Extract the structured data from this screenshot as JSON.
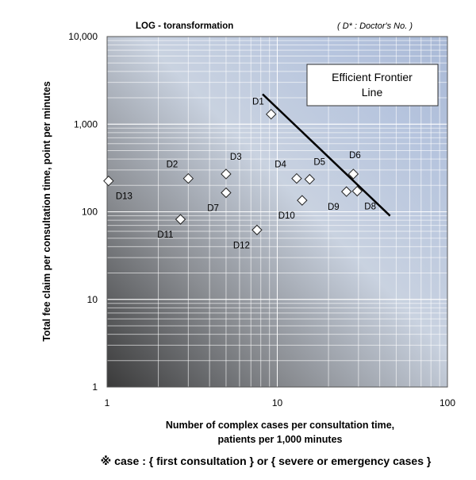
{
  "chart_data": {
    "type": "scatter",
    "scale": "log-log",
    "title": "LOG - toransformation",
    "note": "( D* : Doctor's No. )",
    "xlabel_line1": "Number of complex cases per consultation time,",
    "xlabel_line2": "patients per 1,000 minutes",
    "ylabel": "Total fee claim per consultation time, point per minutes",
    "footnote": "※ case : { first consultation } or { severe or emergency cases }",
    "xlim": [
      1,
      100
    ],
    "ylim": [
      1,
      10000
    ],
    "x_ticks": [
      {
        "value": 1,
        "label": "1"
      },
      {
        "value": 10,
        "label": "10"
      },
      {
        "value": 100,
        "label": "100"
      }
    ],
    "y_ticks": [
      {
        "value": 1,
        "label": "1"
      },
      {
        "value": 10,
        "label": "10"
      },
      {
        "value": 100,
        "label": "100"
      },
      {
        "value": 1000,
        "label": "1,000"
      },
      {
        "value": 10000,
        "label": "10,000"
      }
    ],
    "grid": true,
    "points": [
      {
        "label": "D1",
        "x": 9.2,
        "y": 1300,
        "label_pos": "left"
      },
      {
        "label": "D2",
        "x": 3.0,
        "y": 240,
        "label_pos": "upper-left"
      },
      {
        "label": "D3",
        "x": 5.0,
        "y": 270,
        "label_pos": "upper-right"
      },
      {
        "label": "D4",
        "x": 13.0,
        "y": 240,
        "label_pos": "upper-left"
      },
      {
        "label": "D5",
        "x": 15.5,
        "y": 235,
        "label_pos": "upper-right"
      },
      {
        "label": "D6",
        "x": 28.0,
        "y": 270,
        "label_pos": "upper"
      },
      {
        "label": "D7",
        "x": 5.0,
        "y": 165,
        "label_pos": "lower-left"
      },
      {
        "label": "D8",
        "x": 29.5,
        "y": 172,
        "label_pos": "lower-right"
      },
      {
        "label": "D9",
        "x": 25.5,
        "y": 170,
        "label_pos": "lower-left"
      },
      {
        "label": "D10",
        "x": 14.0,
        "y": 135,
        "label_pos": "lower-left"
      },
      {
        "label": "D11",
        "x": 2.7,
        "y": 82,
        "label_pos": "lower-left"
      },
      {
        "label": "D12",
        "x": 7.6,
        "y": 62,
        "label_pos": "lower-left"
      },
      {
        "label": "D13",
        "x": 1.02,
        "y": 225,
        "label_pos": "lower-right"
      }
    ],
    "frontier_line": {
      "label_line1": "Efficient Frontier",
      "label_line2": "Line",
      "start": {
        "x": 8.2,
        "y": 2200
      },
      "end": {
        "x": 46,
        "y": 90
      }
    }
  }
}
